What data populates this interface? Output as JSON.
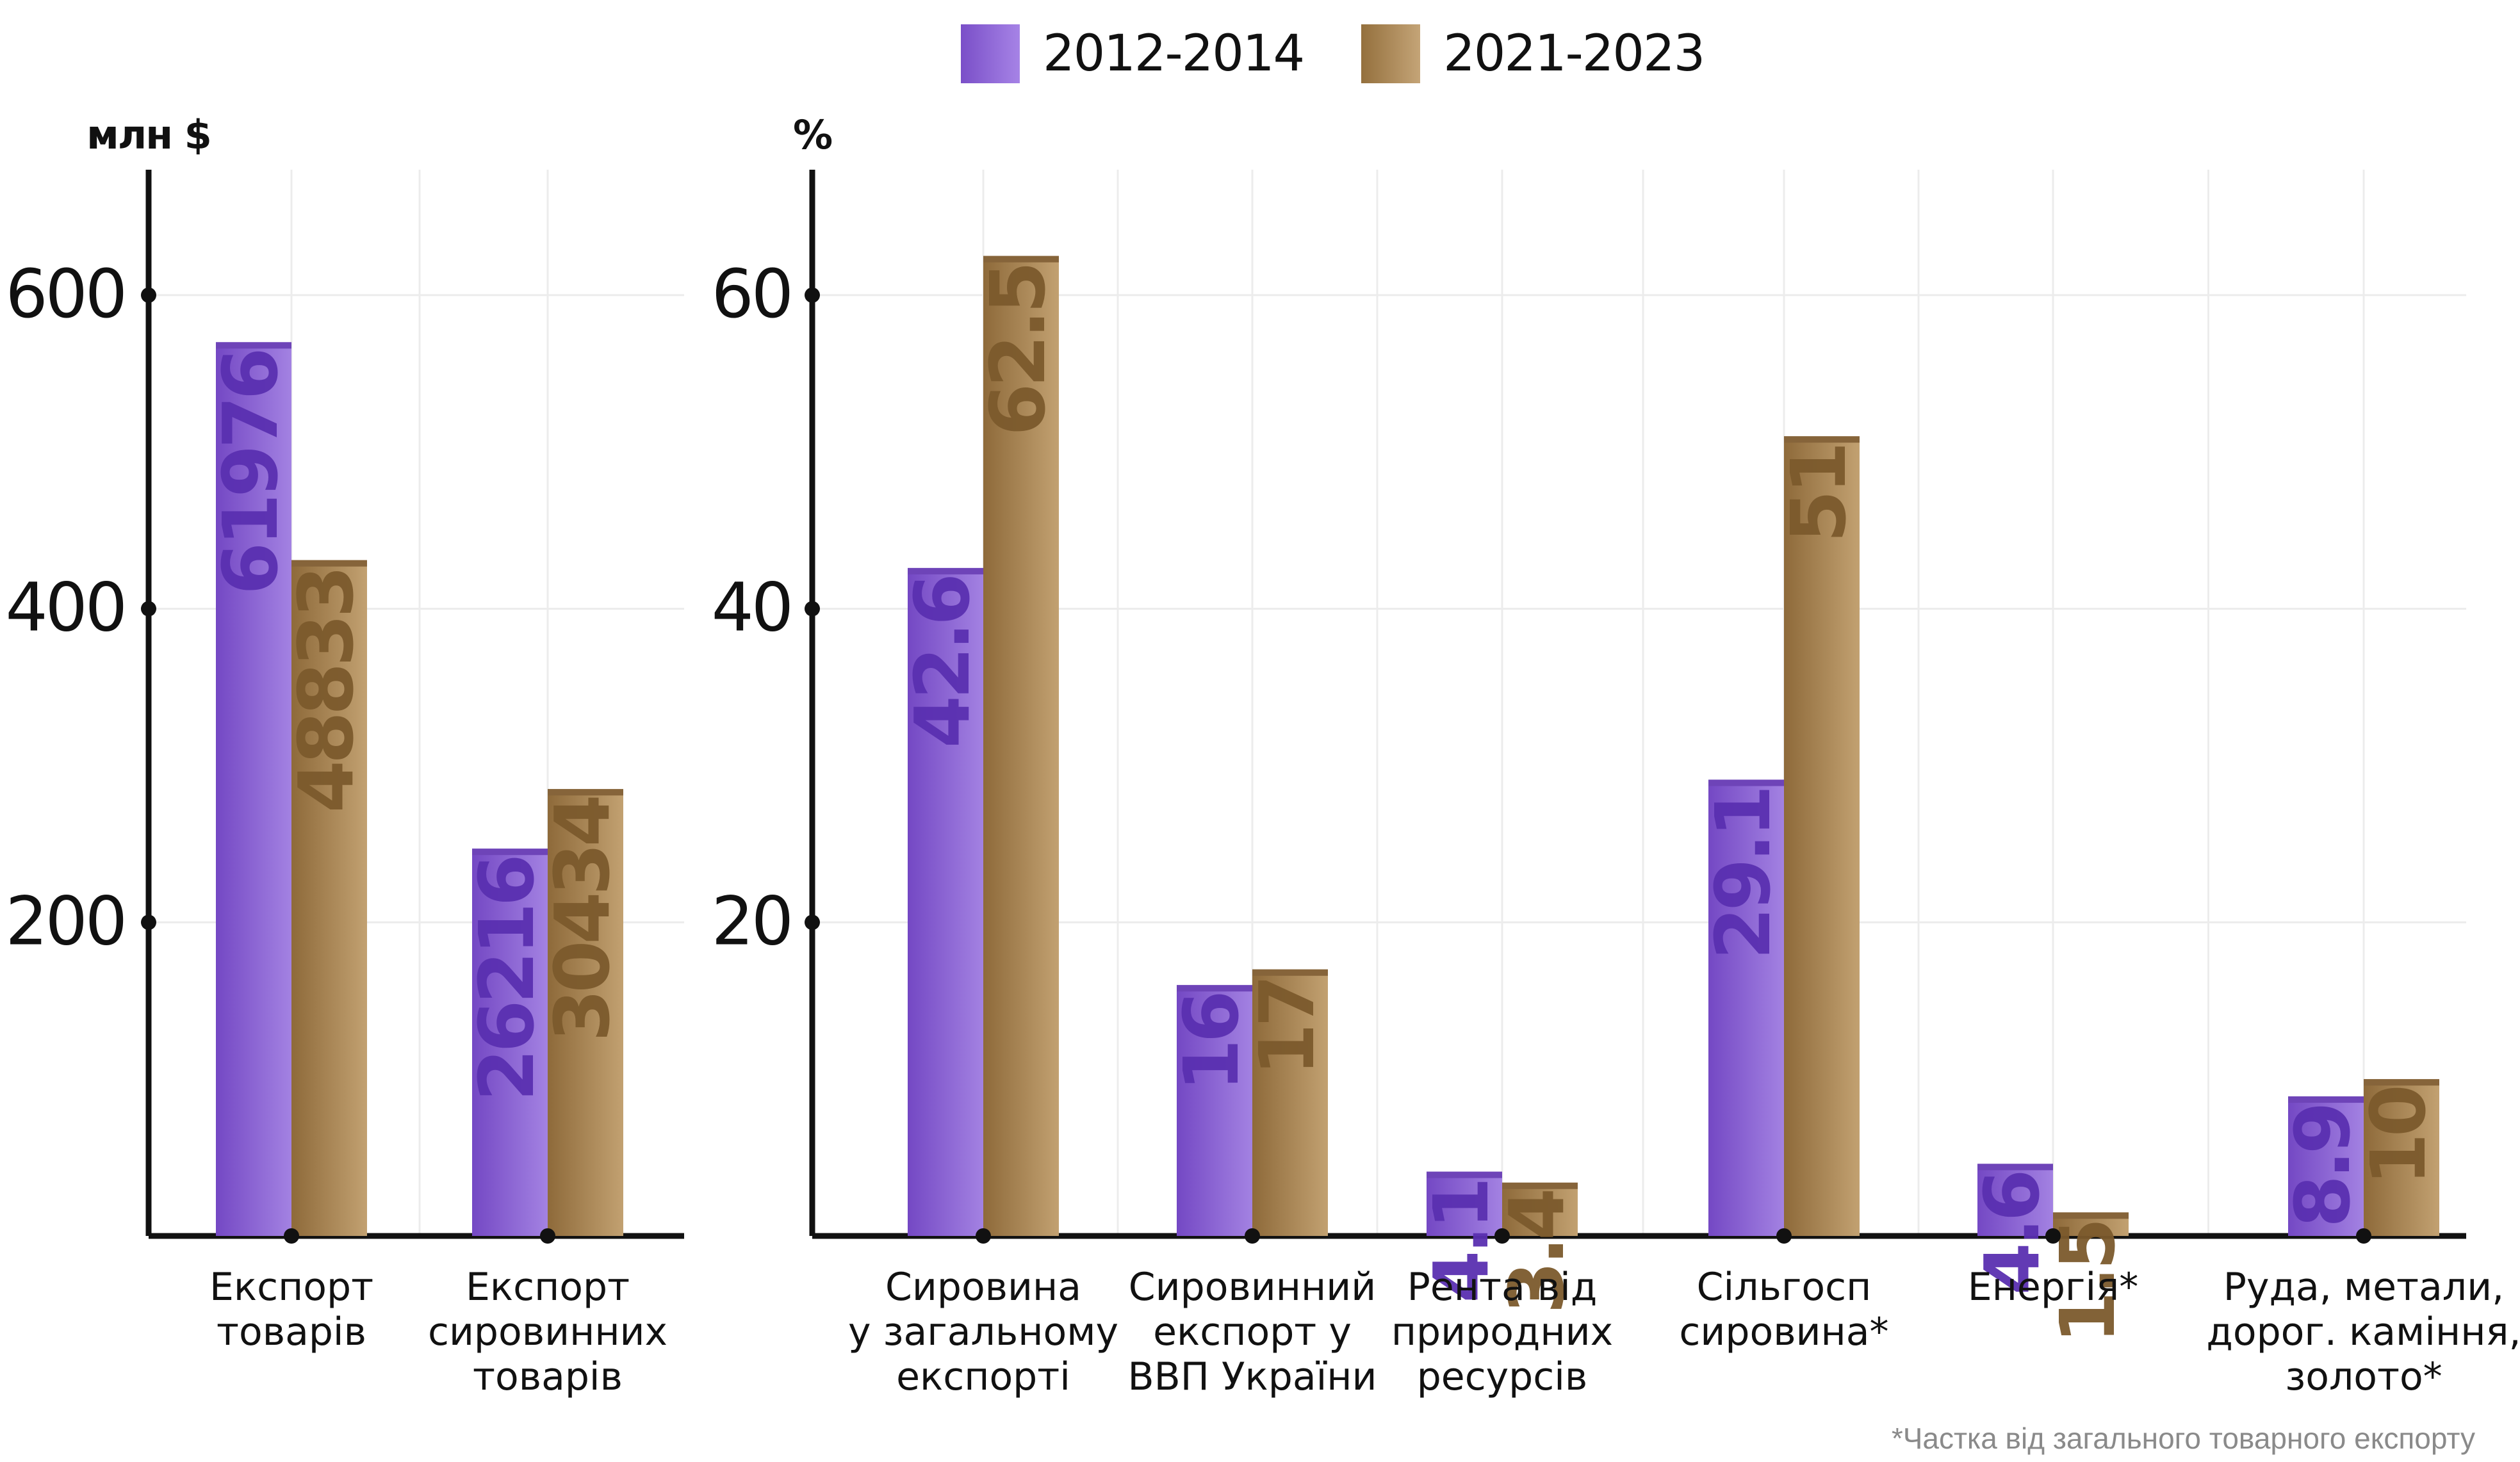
{
  "legend": [
    {
      "label": "2012-2014",
      "color": "#8a5fd6"
    },
    {
      "label": "2021-2023",
      "color": "#a78452"
    }
  ],
  "footnote": "*Частка від загального товарного експорту",
  "chart_data": [
    {
      "type": "bar",
      "ylabel": "млн $",
      "ylim": [
        0,
        680
      ],
      "yticks": [
        200,
        400,
        600
      ],
      "grid": true,
      "categories": [
        "Експорт\nтоварів",
        "Експорт\nсировинних\nтоварів"
      ],
      "series": [
        {
          "name": "2012-2014",
          "values": [
            570,
            247
          ],
          "labels": [
            "61976",
            "26216"
          ]
        },
        {
          "name": "2021-2023",
          "values": [
            431,
            285
          ],
          "labels": [
            "48833",
            "30434"
          ]
        }
      ]
    },
    {
      "type": "bar",
      "ylabel": "%",
      "ylim": [
        0,
        68
      ],
      "yticks": [
        20,
        40,
        60
      ],
      "grid": true,
      "categories": [
        "Сировина\nу загальному\nекспорті",
        "Сировинний\nекспорт у\nВВП України",
        "Рента від\nприродних\nресурсів",
        "Сільгосп\nсировина*",
        "Енергія*",
        "Руда, метали,\nдорог. каміння,\nзолото*"
      ],
      "series": [
        {
          "name": "2012-2014",
          "values": [
            42.6,
            16,
            4.1,
            29.1,
            4.6,
            8.9
          ],
          "labels": [
            "42.6",
            "16",
            "4.1",
            "29.1",
            "4.6",
            "8.9"
          ]
        },
        {
          "name": "2021-2023",
          "values": [
            62.5,
            17,
            3.4,
            51,
            1.5,
            10
          ],
          "labels": [
            "62.5",
            "17",
            "3.4",
            "51",
            "1.5",
            "10"
          ]
        }
      ]
    }
  ]
}
